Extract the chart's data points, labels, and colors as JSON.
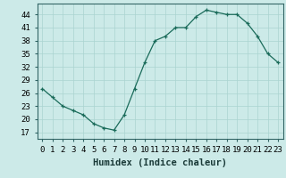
{
  "x": [
    0,
    1,
    2,
    3,
    4,
    5,
    6,
    7,
    8,
    9,
    10,
    11,
    12,
    13,
    14,
    15,
    16,
    17,
    18,
    19,
    20,
    21,
    22,
    23
  ],
  "y": [
    27,
    25,
    23,
    22,
    21,
    19,
    18,
    17.5,
    21,
    27,
    33,
    38,
    39,
    41,
    41,
    43.5,
    45,
    44.5,
    44,
    44,
    42,
    39,
    35,
    33
  ],
  "line_color": "#1a6b5a",
  "marker": "+",
  "marker_color": "#1a6b5a",
  "bg_color": "#cceae8",
  "grid_color": "#aad4d0",
  "xlabel": "Humidex (Indice chaleur)",
  "xlim": [
    -0.5,
    23.5
  ],
  "ylim": [
    15.5,
    46.5
  ],
  "yticks": [
    17,
    20,
    23,
    26,
    29,
    32,
    35,
    38,
    41,
    44
  ],
  "xtick_labels": [
    "0",
    "1",
    "2",
    "3",
    "4",
    "5",
    "6",
    "7",
    "8",
    "9",
    "10",
    "11",
    "12",
    "13",
    "14",
    "15",
    "16",
    "17",
    "18",
    "19",
    "20",
    "21",
    "22",
    "23"
  ],
  "xlabel_fontsize": 7.5,
  "tick_fontsize": 6.5
}
